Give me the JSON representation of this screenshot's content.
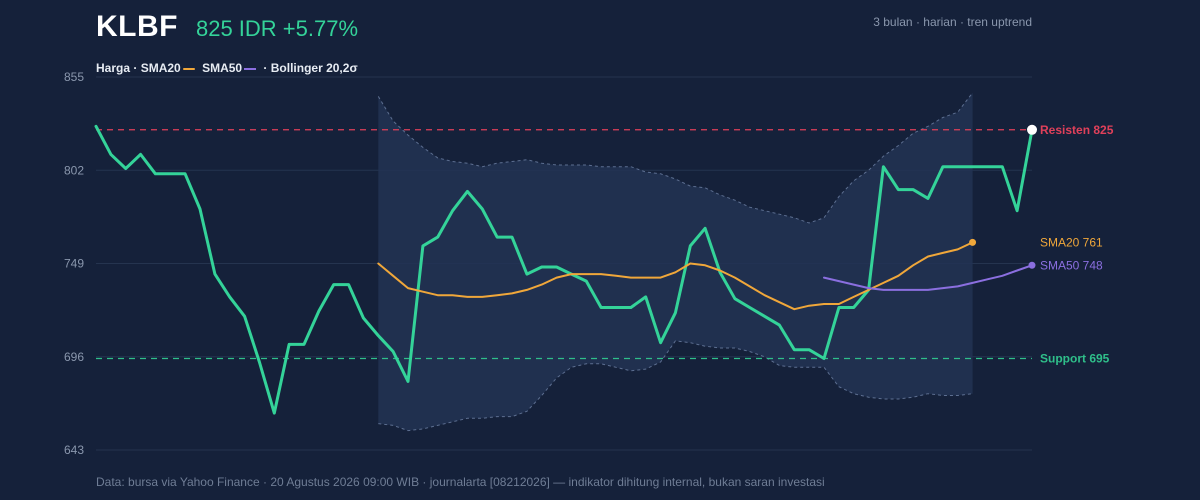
{
  "header": {
    "ticker": "KLBF",
    "price_change": "825 IDR +5.77%",
    "meta": "3 bulan · harian · tren uptrend"
  },
  "legend": {
    "price": "Harga",
    "sep": "·",
    "sma20": "SMA20",
    "sma50": "SMA50",
    "bollinger": "· Bollinger 20,2σ"
  },
  "footer": {
    "text": "Data: bursa via Yahoo Finance · 20 Agustus 2026 09:00 WIB · journalarta [08212026] — indikator dihitung internal, bukan saran investasi"
  },
  "colors": {
    "background": "#15213a",
    "price": "#34d399",
    "sma20": "#f0a73a",
    "sma50": "#8b6fe0",
    "band_fill": "#223353",
    "band_line": "#5d6f91",
    "resistance": "#e0405a",
    "support": "#2fbf8a",
    "grid": "#25344f",
    "axis_text": "#8a97ad"
  },
  "chart_data": {
    "type": "line",
    "ylim": [
      643,
      855
    ],
    "yticks": [
      855,
      802,
      749,
      696,
      643
    ],
    "grid": true,
    "x_count": 64,
    "series": [
      {
        "name": "Harga",
        "start": 0,
        "values": [
          827,
          811,
          803,
          811,
          800,
          800,
          800,
          780,
          743,
          730,
          719,
          693,
          664,
          703,
          703,
          722,
          737,
          737,
          718,
          708,
          699,
          682,
          759,
          764,
          779,
          790,
          780,
          764,
          764,
          743,
          747,
          747,
          743,
          739,
          724,
          724,
          724,
          730,
          704,
          721,
          759,
          769,
          744,
          729,
          724,
          719,
          714,
          700,
          700,
          695,
          724,
          724,
          734,
          804,
          791,
          791,
          786,
          804,
          804,
          804,
          804,
          804,
          779,
          825
        ]
      },
      {
        "name": "SMA20",
        "start": 19,
        "values": [
          749,
          742,
          735,
          733,
          731,
          731,
          730,
          730,
          731,
          732,
          734,
          737,
          741,
          743,
          743,
          743,
          742,
          741,
          741,
          741,
          744,
          749,
          748,
          745,
          741,
          736,
          731,
          727,
          723,
          725,
          726,
          726,
          730,
          734,
          738,
          742,
          748,
          753,
          755,
          757,
          761
        ]
      },
      {
        "name": "SMA50",
        "start": 49,
        "values": [
          741,
          739,
          737,
          735,
          734,
          734,
          734,
          734,
          735,
          736,
          738,
          740,
          742,
          745,
          748
        ]
      }
    ],
    "bollinger_upper": {
      "start": 19,
      "values": [
        844,
        830,
        822,
        815,
        809,
        807,
        806,
        804,
        806,
        807,
        808,
        806,
        805,
        805,
        805,
        804,
        804,
        804,
        801,
        800,
        797,
        793,
        792,
        788,
        785,
        781,
        779,
        777,
        775,
        772,
        775,
        787,
        796,
        802,
        810,
        816,
        823,
        827,
        832,
        835,
        846
      ]
    },
    "bollinger_lower": {
      "start": 19,
      "values": [
        658,
        657,
        654,
        655,
        657,
        659,
        661,
        661,
        662,
        662,
        665,
        674,
        684,
        690,
        692,
        692,
        690,
        688,
        689,
        693,
        705,
        704,
        702,
        701,
        701,
        699,
        696,
        691,
        690,
        690,
        690,
        679,
        675,
        673,
        672,
        672,
        673,
        675,
        674,
        674,
        675
      ]
    },
    "levels": [
      {
        "label": "Resisten 825",
        "value": 825,
        "style": "resistance"
      },
      {
        "label": "Support 695",
        "value": 695,
        "style": "support"
      }
    ],
    "end_labels": [
      {
        "label": "SMA20 761",
        "value": 761,
        "style": "sma20"
      },
      {
        "label": "SMA50 748",
        "value": 748,
        "style": "sma50"
      }
    ]
  }
}
